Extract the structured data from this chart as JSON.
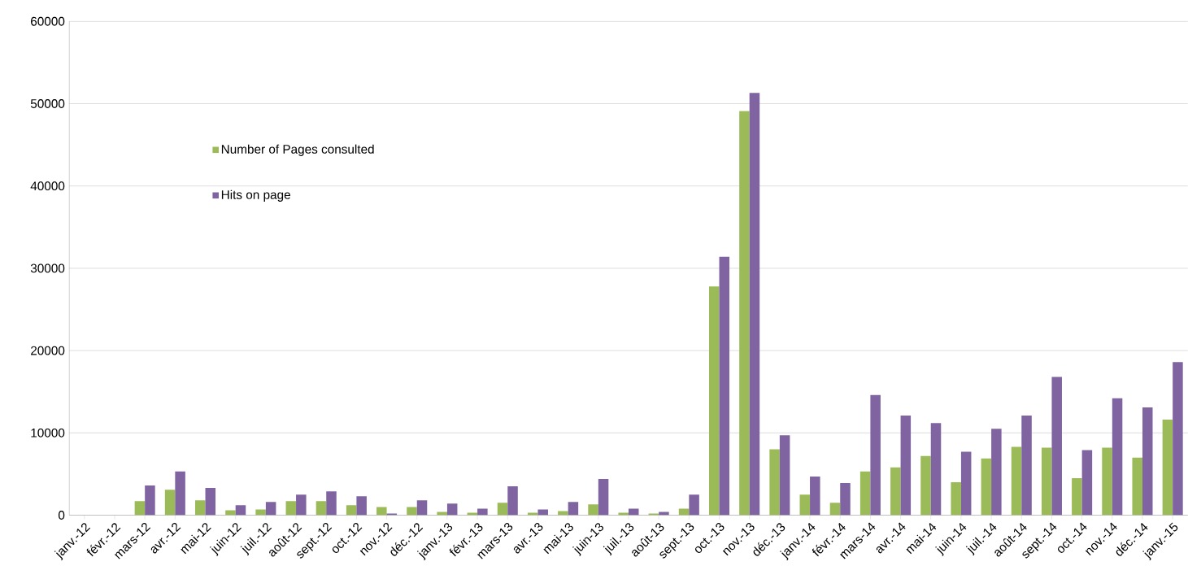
{
  "chart_data": {
    "type": "bar",
    "categories": [
      "janv.-12",
      "févr.-12",
      "mars-12",
      "avr.-12",
      "mai-12",
      "juin-12",
      "juil.-12",
      "août-12",
      "sept.-12",
      "oct.-12",
      "nov.-12",
      "déc.-12",
      "janv.-13",
      "févr.-13",
      "mars-13",
      "avr.-13",
      "mai-13",
      "juin-13",
      "juil.-13",
      "août-13",
      "sept.-13",
      "oct.-13",
      "nov.-13",
      "déc.-13",
      "janv.-14",
      "févr.-14",
      "mars-14",
      "avr.-14",
      "mai-14",
      "juin-14",
      "juil.-14",
      "août-14",
      "sept.-14",
      "oct.-14",
      "nov.-14",
      "déc.-14",
      "janv.-15"
    ],
    "series": [
      {
        "name": "Number of Pages consulted",
        "color": "#9bbb59",
        "values": [
          0,
          0,
          1700,
          3100,
          1800,
          600,
          700,
          1700,
          1700,
          1200,
          1000,
          1000,
          400,
          300,
          1500,
          300,
          500,
          1300,
          300,
          200,
          800,
          27800,
          49100,
          8000,
          2500,
          1500,
          5300,
          5800,
          7200,
          4000,
          6900,
          8300,
          8200,
          4500,
          8200,
          7000,
          11600
        ]
      },
      {
        "name": "Hits on page",
        "color": "#8064a2",
        "values": [
          0,
          0,
          3600,
          5300,
          3300,
          1200,
          1600,
          2500,
          2900,
          2300,
          200,
          1800,
          1400,
          800,
          3500,
          700,
          1600,
          4400,
          800,
          400,
          2500,
          31400,
          51300,
          9700,
          4700,
          3900,
          14600,
          12100,
          11200,
          7700,
          10500,
          12100,
          16800,
          7900,
          14200,
          13100,
          18600
        ]
      }
    ],
    "ylim": [
      0,
      60000
    ],
    "yticks": [
      0,
      10000,
      20000,
      30000,
      40000,
      50000,
      60000
    ],
    "grid": "y",
    "legend": "top left"
  }
}
